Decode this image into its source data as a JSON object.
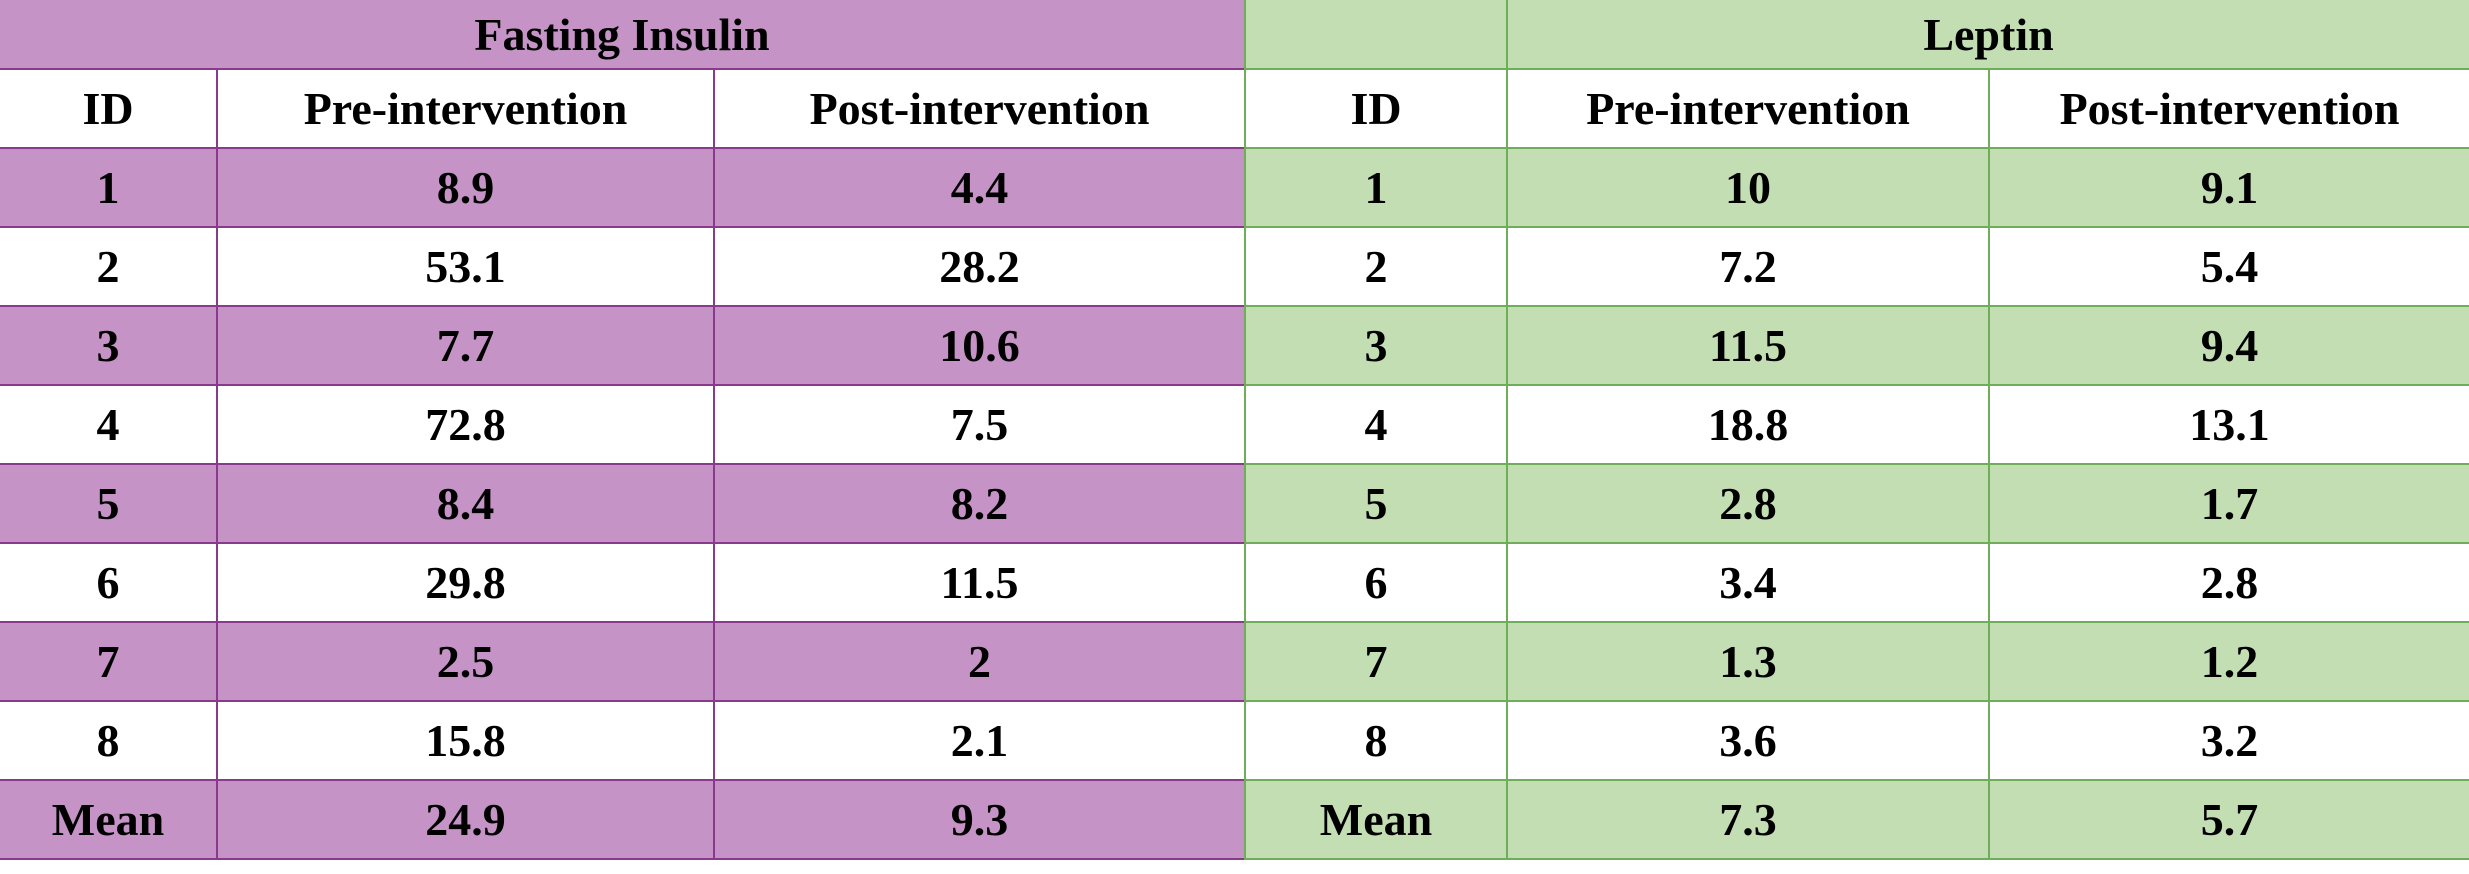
{
  "insulin": {
    "title": "Fasting Insulin",
    "headers": [
      "ID",
      "Pre-intervention",
      "Post-intervention"
    ],
    "rows": [
      [
        "1",
        "8.9",
        "4.4"
      ],
      [
        "2",
        "53.1",
        "28.2"
      ],
      [
        "3",
        "7.7",
        "10.6"
      ],
      [
        "4",
        "72.8",
        "7.5"
      ],
      [
        "5",
        "8.4",
        "8.2"
      ],
      [
        "6",
        "29.8",
        "11.5"
      ],
      [
        "7",
        "2.5",
        "2"
      ],
      [
        "8",
        "15.8",
        "2.1"
      ],
      [
        "Mean",
        "24.9",
        "9.3"
      ]
    ]
  },
  "leptin": {
    "title": "Leptin",
    "headers": [
      "ID",
      "Pre-intervention",
      "Post-intervention"
    ],
    "rows": [
      [
        "1",
        "10",
        "9.1"
      ],
      [
        "2",
        "7.2",
        "5.4"
      ],
      [
        "3",
        "11.5",
        "9.4"
      ],
      [
        "4",
        "18.8",
        "13.1"
      ],
      [
        "5",
        "2.8",
        "1.7"
      ],
      [
        "6",
        "3.4",
        "2.8"
      ],
      [
        "7",
        "1.3",
        "1.2"
      ],
      [
        "8",
        "3.6",
        "3.2"
      ],
      [
        "Mean",
        "7.3",
        "5.7"
      ]
    ]
  },
  "colors": {
    "insulin_band": "#c593c6",
    "insulin_border": "#8a3a8c",
    "leptin_band": "#c4deb4",
    "leptin_border": "#6fae58"
  }
}
